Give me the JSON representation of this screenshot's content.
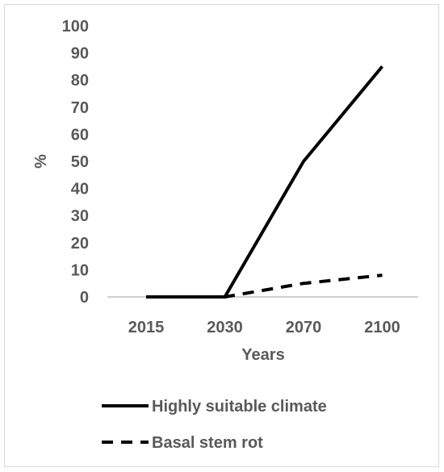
{
  "chart_data": {
    "type": "line",
    "categories": [
      "2015",
      "2030",
      "2070",
      "2100"
    ],
    "series": [
      {
        "name": "Highly suitable climate",
        "values": [
          0,
          0,
          50,
          85
        ],
        "dash": "solid",
        "color": "#000000"
      },
      {
        "name": "Basal stem rot",
        "values": [
          0,
          0,
          5,
          8
        ],
        "dash": "dashed",
        "color": "#000000"
      }
    ],
    "yticks": [
      0,
      10,
      20,
      30,
      40,
      50,
      60,
      70,
      80,
      90,
      100
    ],
    "ylim": [
      0,
      100
    ],
    "xlabel": "Years",
    "ylabel": "%",
    "grid": false,
    "legend_position": "bottom"
  }
}
